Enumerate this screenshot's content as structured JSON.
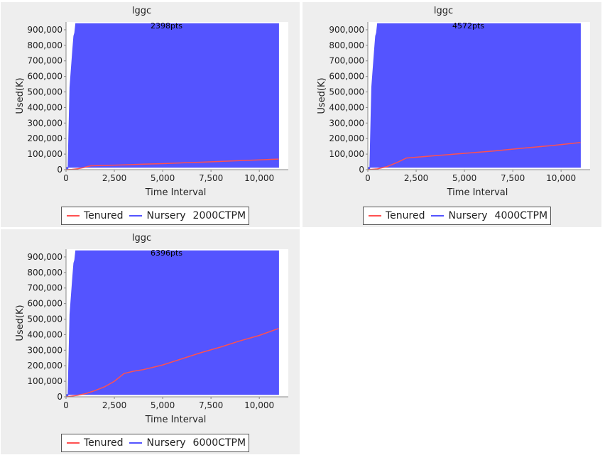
{
  "colors": {
    "tenured": "#ff5050",
    "nursery": "#5454ff",
    "panel_bg": "#eeeeee"
  },
  "chart_data": [
    {
      "type": "area",
      "title": "lggc",
      "annotation": "2398pts",
      "xlabel": "Time Interval",
      "ylabel": "Used(K)",
      "xlim": [
        0,
        11500
      ],
      "ylim": [
        0,
        950000
      ],
      "x_ticks": [
        "0",
        "2,500",
        "5,000",
        "7,500",
        "10,000"
      ],
      "y_ticks": [
        "0",
        "100,000",
        "200,000",
        "300,000",
        "400,000",
        "500,000",
        "600,000",
        "700,000",
        "800,000",
        "900,000"
      ],
      "legend": {
        "items": [
          "Tenured",
          "Nursery"
        ],
        "suffix": "2000CTPM",
        "position": "bottom"
      },
      "series": [
        {
          "name": "Tenured",
          "color": "#ff5050",
          "x": [
            0,
            300,
            600,
            900,
            1100,
            1300,
            2000,
            3000,
            4000,
            5000,
            6000,
            7000,
            8000,
            9000,
            10000,
            11000
          ],
          "y": [
            0,
            2000,
            6000,
            13000,
            20000,
            25000,
            27000,
            31000,
            35000,
            39000,
            44000,
            48000,
            53000,
            58000,
            63000,
            68000
          ]
        },
        {
          "name": "Nursery",
          "color": "#5454ff",
          "x": [
            0,
            100,
            200,
            300,
            350,
            400,
            450,
            500,
            11000
          ],
          "y_top": [
            0,
            0,
            530000,
            700000,
            780000,
            860000,
            880000,
            940000,
            940000
          ],
          "y_bottom": 15000
        }
      ]
    },
    {
      "type": "area",
      "title": "lggc",
      "annotation": "4572pts",
      "xlabel": "Time Interval",
      "ylabel": "Used(K)",
      "xlim": [
        0,
        11500
      ],
      "ylim": [
        0,
        950000
      ],
      "x_ticks": [
        "0",
        "2,500",
        "5,000",
        "7,500",
        "10,000"
      ],
      "y_ticks": [
        "0",
        "100,000",
        "200,000",
        "300,000",
        "400,000",
        "500,000",
        "600,000",
        "700,000",
        "800,000",
        "900,000"
      ],
      "legend": {
        "items": [
          "Tenured",
          "Nursery"
        ],
        "suffix": "4000CTPM",
        "position": "bottom"
      },
      "series": [
        {
          "name": "Tenured",
          "color": "#ff5050",
          "x": [
            0,
            500,
            1000,
            1500,
            2000,
            2500,
            3500,
            5000,
            6500,
            8000,
            9500,
            11000
          ],
          "y": [
            0,
            5000,
            20000,
            45000,
            75000,
            80000,
            90000,
            105000,
            120000,
            138000,
            155000,
            175000
          ]
        },
        {
          "name": "Nursery",
          "color": "#5454ff",
          "x": [
            0,
            100,
            200,
            300,
            350,
            400,
            450,
            500,
            11000
          ],
          "y_top": [
            0,
            0,
            530000,
            700000,
            780000,
            860000,
            880000,
            940000,
            940000
          ],
          "y_bottom": 15000
        }
      ]
    },
    {
      "type": "area",
      "title": "lggc",
      "annotation": "6396pts",
      "xlabel": "Time Interval",
      "ylabel": "Used(K)",
      "xlim": [
        0,
        11500
      ],
      "ylim": [
        0,
        950000
      ],
      "x_ticks": [
        "0",
        "2,500",
        "5,000",
        "7,500",
        "10,000"
      ],
      "y_ticks": [
        "0",
        "100,000",
        "200,000",
        "300,000",
        "400,000",
        "500,000",
        "600,000",
        "700,000",
        "800,000",
        "900,000"
      ],
      "legend": {
        "items": [
          "Tenured",
          "Nursery"
        ],
        "suffix": "6000CTPM",
        "position": "bottom"
      },
      "series": [
        {
          "name": "Tenured",
          "color": "#ff5050",
          "x": [
            0,
            500,
            1000,
            1500,
            2000,
            2500,
            3000,
            3500,
            4000,
            5000,
            6000,
            7000,
            8000,
            9000,
            10000,
            11000
          ],
          "y": [
            0,
            8000,
            20000,
            40000,
            65000,
            100000,
            150000,
            165000,
            175000,
            205000,
            245000,
            285000,
            320000,
            360000,
            395000,
            440000
          ]
        },
        {
          "name": "Nursery",
          "color": "#5454ff",
          "x": [
            0,
            100,
            200,
            300,
            350,
            400,
            450,
            500,
            11000
          ],
          "y_top": [
            0,
            0,
            530000,
            700000,
            780000,
            860000,
            880000,
            940000,
            940000
          ],
          "y_bottom": 15000
        }
      ]
    }
  ]
}
